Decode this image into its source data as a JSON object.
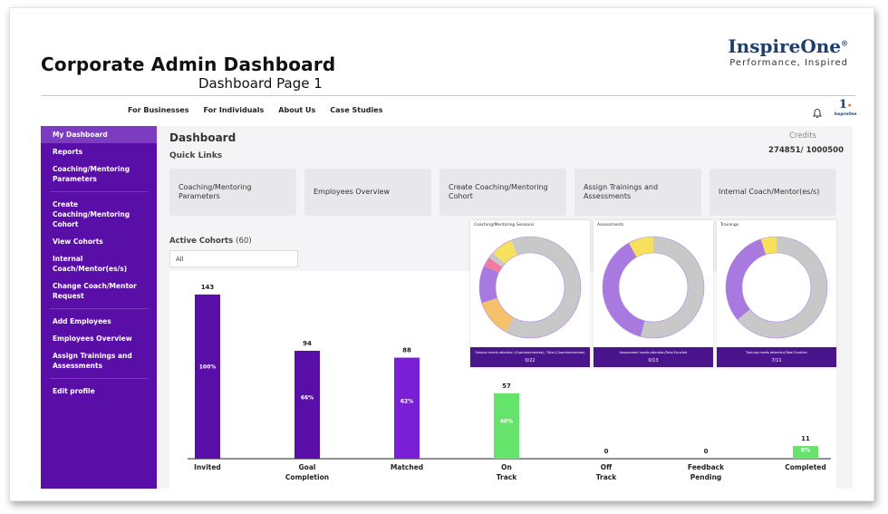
{
  "slide": {
    "title": "Corporate Admin Dashboard",
    "subtitle": "Dashboard Page 1",
    "brand": "InspireOne",
    "brand_mark": "®",
    "tagline": "Performance, Inspired"
  },
  "nav": [
    "For Businesses",
    "For Individuals",
    "About Us",
    "Case Studies"
  ],
  "mini_logo": {
    "numeral": "1",
    "text": "InspireOne"
  },
  "sidebar": {
    "items": [
      "My Dashboard",
      "Reports",
      "Coaching/Mentoring Parameters",
      "Create Coaching/Mentoring Cohort",
      "View Cohorts",
      "Internal Coach/Mentor(es/s)",
      "Change Coach/Mentor Request",
      "Add Employees",
      "Employees Overview",
      "Assign Trainings and Assessments",
      "Edit profile"
    ]
  },
  "dashboard": {
    "title": "Dashboard",
    "quick_links_title": "Quick Links",
    "credits_label": "Credits",
    "credits_value": "274851/ 1000500",
    "quick_links": [
      "Coaching/Mentoring Parameters",
      "Employees Overview",
      "Create Coaching/Mentoring Cohort",
      "Assign Trainings and Assessments",
      "Internal Coach/Mentor(es/s)"
    ],
    "active_cohorts_label": "Active Cohorts",
    "active_cohorts_count": "(60)",
    "cohort_filter": "All"
  },
  "colors": {
    "sidebar": "#5a0ea8",
    "bar_purple": "#5a0ea8",
    "bar_purple_light": "#7a1fd6",
    "bar_green": "#66e36b",
    "donut_grey": "#c8c8c8",
    "donut_purple": "#a87ae0",
    "donut_yellow": "#f6e05e",
    "donut_orange": "#f5c26b",
    "donut_pink": "#f27ca0",
    "footer_purple": "#4a148c"
  },
  "chart_data": [
    {
      "type": "bar",
      "categories": [
        "Invited",
        "Goal\nCompletion",
        "Matched",
        "On\nTrack",
        "Off\nTrack",
        "Feedback\nPending",
        "Completed"
      ],
      "values": [
        143,
        94,
        88,
        57,
        0,
        0,
        11
      ],
      "percent_labels": [
        "100%",
        "66%",
        "62%",
        "40%",
        "",
        "",
        "8%"
      ],
      "bar_colors": [
        "#5a0ea8",
        "#5a0ea8",
        "#7a1fd6",
        "#66e36b",
        "#66e36b",
        "#66e36b",
        "#66e36b"
      ],
      "ylim": [
        0,
        150
      ]
    },
    {
      "type": "pie",
      "title": "Coaching/Mentoring Sessions",
      "slices": [
        {
          "value": 58,
          "color": "#c8c8c8"
        },
        {
          "value": 12,
          "color": "#f5c26b"
        },
        {
          "value": 12,
          "color": "#a87ae0"
        },
        {
          "value": 3,
          "color": "#f27ca0"
        },
        {
          "value": 2,
          "color": "#c8c8c8"
        },
        {
          "value": 7,
          "color": "#f6e05e"
        },
        {
          "value": 6,
          "color": "#c8c8c8"
        }
      ],
      "footer_note": "Session needs attention (Coachee/mentee) / Total (Coachee/mentee)",
      "footer_value": "0/22"
    },
    {
      "type": "pie",
      "title": "Assessments",
      "slices": [
        {
          "value": 54,
          "color": "#c8c8c8"
        },
        {
          "value": 38,
          "color": "#a87ae0"
        },
        {
          "value": 8,
          "color": "#f6e05e"
        }
      ],
      "footer_note": "Assessment needs attention/Total Enrolled",
      "footer_value": "0/13"
    },
    {
      "type": "pie",
      "title": "Trainings",
      "slices": [
        {
          "value": 64,
          "color": "#c8c8c8"
        },
        {
          "value": 31,
          "color": "#a87ae0"
        },
        {
          "value": 5,
          "color": "#f6e05e"
        }
      ],
      "footer_note": "Training needs attention/Total Enrolled",
      "footer_value": "7/11"
    }
  ]
}
